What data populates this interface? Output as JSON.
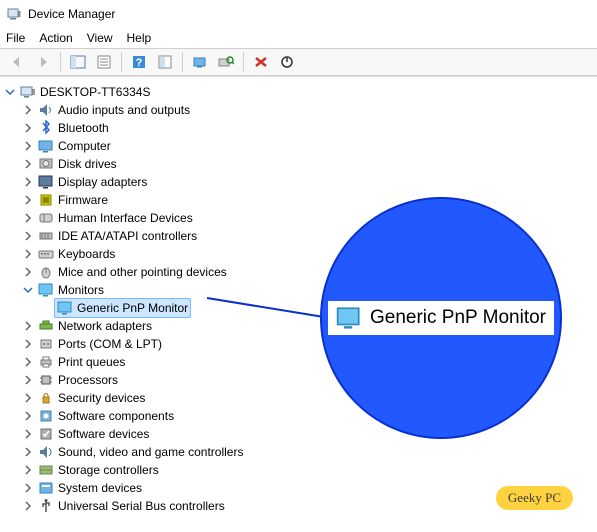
{
  "window": {
    "title": "Device Manager"
  },
  "menu": {
    "file": "File",
    "action": "Action",
    "view": "View",
    "help": "Help"
  },
  "toolbar": {
    "back_enabled": false,
    "forward_enabled": false
  },
  "tree": {
    "root": "DESKTOP-TT6334S",
    "nodes": [
      {
        "label": "Audio inputs and outputs",
        "icon": "audio",
        "state": "collapsed"
      },
      {
        "label": "Bluetooth",
        "icon": "bluetooth",
        "state": "collapsed"
      },
      {
        "label": "Computer",
        "icon": "computer",
        "state": "collapsed"
      },
      {
        "label": "Disk drives",
        "icon": "disk",
        "state": "collapsed"
      },
      {
        "label": "Display adapters",
        "icon": "display",
        "state": "collapsed"
      },
      {
        "label": "Firmware",
        "icon": "firmware",
        "state": "collapsed"
      },
      {
        "label": "Human Interface Devices",
        "icon": "hid",
        "state": "collapsed"
      },
      {
        "label": "IDE ATA/ATAPI controllers",
        "icon": "ide",
        "state": "collapsed"
      },
      {
        "label": "Keyboards",
        "icon": "keyboard",
        "state": "collapsed"
      },
      {
        "label": "Mice and other pointing devices",
        "icon": "mouse",
        "state": "collapsed"
      },
      {
        "label": "Monitors",
        "icon": "monitor",
        "state": "expanded",
        "children": [
          {
            "label": "Generic PnP Monitor",
            "icon": "monitor",
            "selected": true
          }
        ]
      },
      {
        "label": "Network adapters",
        "icon": "network",
        "state": "collapsed"
      },
      {
        "label": "Ports (COM & LPT)",
        "icon": "port",
        "state": "collapsed"
      },
      {
        "label": "Print queues",
        "icon": "printer",
        "state": "collapsed"
      },
      {
        "label": "Processors",
        "icon": "cpu",
        "state": "collapsed"
      },
      {
        "label": "Security devices",
        "icon": "security",
        "state": "collapsed"
      },
      {
        "label": "Software components",
        "icon": "swcomp",
        "state": "collapsed"
      },
      {
        "label": "Software devices",
        "icon": "swdev",
        "state": "collapsed"
      },
      {
        "label": "Sound, video and game controllers",
        "icon": "sound",
        "state": "collapsed"
      },
      {
        "label": "Storage controllers",
        "icon": "storage",
        "state": "collapsed"
      },
      {
        "label": "System devices",
        "icon": "system",
        "state": "collapsed"
      },
      {
        "label": "Universal Serial Bus controllers",
        "icon": "usb",
        "state": "collapsed"
      }
    ]
  },
  "callout": {
    "text": "Generic PnP Monitor"
  },
  "watermark": {
    "text": "Geeky PC"
  },
  "colors": {
    "callout_fill": "#2259ff",
    "callout_border": "#0a2fcf",
    "selection_bg": "#cde6ff",
    "selection_border": "#7db7ff",
    "watermark_bg": "#ffd23f"
  }
}
